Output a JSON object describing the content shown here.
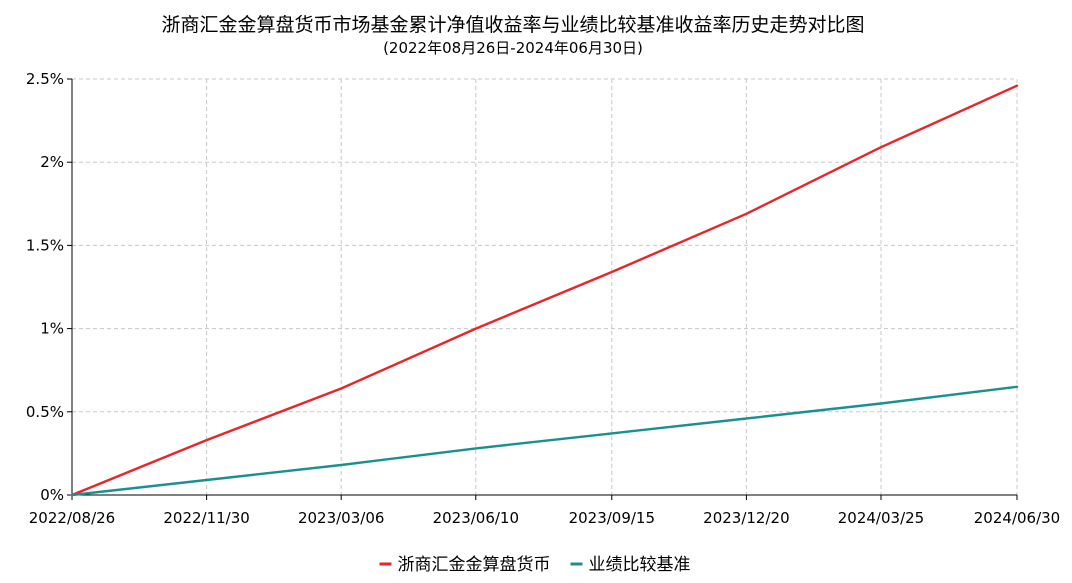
{
  "chart_data": {
    "type": "line",
    "title": "浙商汇金金算盘货币市场基金累计净值收益率与业绩比较基准收益率历史走势对比图",
    "subtitle": "(2022年08月26日-2024年06月30日)",
    "xlabel": "",
    "ylabel": "",
    "x_ticks": [
      "2022/08/26",
      "2022/11/30",
      "2023/03/06",
      "2023/06/10",
      "2023/09/15",
      "2023/12/20",
      "2024/03/25",
      "2024/06/30"
    ],
    "y_ticks": [
      "0%",
      "0.5%",
      "1%",
      "1.5%",
      "2%",
      "2.5%"
    ],
    "ylim": [
      0,
      2.5
    ],
    "grid": true,
    "legend_position": "bottom",
    "series": [
      {
        "name": "浙商汇金金算盘货币",
        "color": "#e8262a",
        "points": [
          [
            "2022/08/26",
            0.0
          ],
          [
            "2022/11/30",
            0.33
          ],
          [
            "2023/03/06",
            0.64
          ],
          [
            "2023/06/10",
            1.0
          ],
          [
            "2023/09/15",
            1.34
          ],
          [
            "2023/12/20",
            1.69
          ],
          [
            "2024/03/25",
            2.09
          ],
          [
            "2024/06/30",
            2.46
          ]
        ]
      },
      {
        "name": "业绩比较基准",
        "color": "#1a9090",
        "points": [
          [
            "2022/08/26",
            0.0
          ],
          [
            "2022/11/30",
            0.09
          ],
          [
            "2023/03/06",
            0.18
          ],
          [
            "2023/06/10",
            0.28
          ],
          [
            "2023/09/15",
            0.37
          ],
          [
            "2023/12/20",
            0.46
          ],
          [
            "2024/03/25",
            0.55
          ],
          [
            "2024/06/30",
            0.65
          ]
        ]
      }
    ]
  }
}
